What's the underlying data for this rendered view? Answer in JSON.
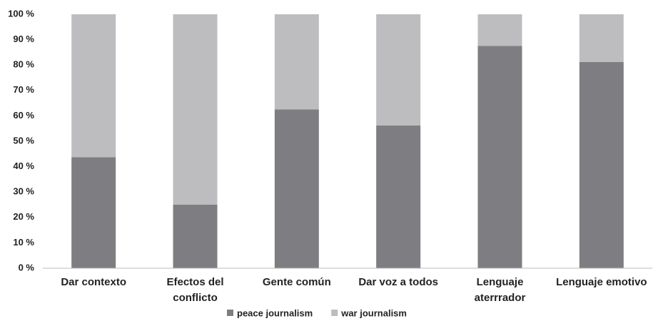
{
  "chart_data": {
    "type": "stacked_bar",
    "categories": [
      "Dar contexto",
      "Efectos del\nconflicto",
      "Gente común",
      "Dar voz a todos",
      "Lenguaje\naterrrador",
      "Lenguaje emotivo"
    ],
    "series": [
      {
        "name": "peace journalism",
        "color": "#7e7e82",
        "values": [
          43.75,
          25,
          62.5,
          56.25,
          87.5,
          81.25
        ]
      },
      {
        "name": "war journalism",
        "color": "#bdbdc0",
        "values": [
          56.25,
          75,
          37.5,
          43.75,
          12.5,
          18.75
        ]
      }
    ],
    "ylim": [
      0,
      100
    ],
    "yticks": [
      {
        "value": 0,
        "label": "0 %"
      },
      {
        "value": 10,
        "label": "10 %"
      },
      {
        "value": 20,
        "label": "20 %"
      },
      {
        "value": 30,
        "label": "30 %"
      },
      {
        "value": 40,
        "label": "40 %"
      },
      {
        "value": 50,
        "label": "50 %"
      },
      {
        "value": 60,
        "label": "60 %"
      },
      {
        "value": 70,
        "label": "70 %"
      },
      {
        "value": 80,
        "label": "80 %"
      },
      {
        "value": 90,
        "label": "90 %"
      },
      {
        "value": 100,
        "label": "100 %"
      }
    ],
    "grid": false,
    "legend": "bottom"
  }
}
